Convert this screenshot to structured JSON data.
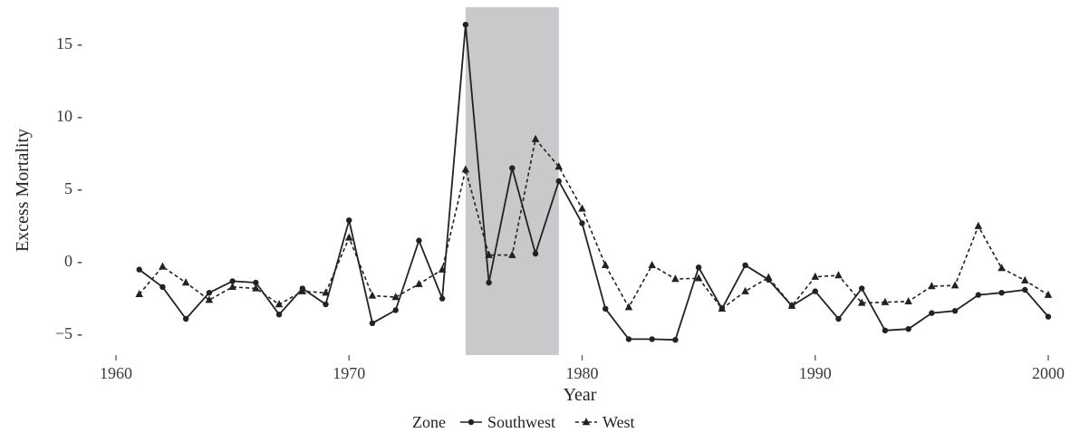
{
  "chart_data": {
    "type": "line",
    "title": "",
    "xlabel": "Year",
    "ylabel": "Excess Mortality",
    "xlim": [
      1960,
      2000
    ],
    "ylim": [
      -6.5,
      17.5
    ],
    "x_ticks": [
      1960,
      1970,
      1980,
      1990,
      2000
    ],
    "x_tick_labels": [
      "1960",
      "1970",
      "1980",
      "1990",
      "2000"
    ],
    "y_ticks": [
      -5,
      0,
      5,
      10,
      15
    ],
    "y_tick_labels": [
      "−5",
      "0",
      "5",
      "10",
      "15"
    ],
    "grid": false,
    "shaded_region": {
      "x": [
        1975,
        1979
      ],
      "color": "#c8c9cb"
    },
    "legend": {
      "title": "Zone",
      "position": "bottom"
    },
    "x": [
      1961,
      1962,
      1963,
      1964,
      1965,
      1966,
      1967,
      1968,
      1969,
      1970,
      1971,
      1972,
      1973,
      1974,
      1975,
      1976,
      1977,
      1978,
      1979,
      1980,
      1981,
      1982,
      1983,
      1984,
      1985,
      1986,
      1987,
      1988,
      1989,
      1990,
      1991,
      1992,
      1993,
      1994,
      1995,
      1996,
      1997,
      1998,
      1999,
      2000
    ],
    "series": [
      {
        "name": "Southwest",
        "marker": "circle",
        "line_style": "solid",
        "color": "#222222",
        "values": [
          -0.6,
          -1.8,
          -4.0,
          -2.2,
          -1.4,
          -1.5,
          -3.7,
          -1.9,
          -3.0,
          2.8,
          -4.3,
          -3.4,
          1.4,
          -2.6,
          16.3,
          -1.5,
          6.4,
          0.5,
          5.5,
          2.6,
          -3.3,
          -5.4,
          -5.4,
          -5.45,
          -0.45,
          -3.3,
          -0.3,
          -1.3,
          -3.1,
          -2.1,
          -4.0,
          -1.9,
          -4.8,
          -4.7,
          -3.6,
          -3.45,
          -2.35,
          -2.2,
          -2.0,
          -3.85
        ]
      },
      {
        "name": "West",
        "marker": "triangle",
        "line_style": "dashed",
        "color": "#222222",
        "values": [
          -2.3,
          -0.4,
          -1.5,
          -2.7,
          -1.8,
          -1.9,
          -3.0,
          -2.1,
          -2.2,
          1.6,
          -2.4,
          -2.5,
          -1.6,
          -0.6,
          6.3,
          0.4,
          0.4,
          8.4,
          6.5,
          3.6,
          -0.3,
          -3.2,
          -0.3,
          -1.25,
          -1.2,
          -3.3,
          -2.1,
          -1.15,
          -3.1,
          -1.1,
          -1.0,
          -2.9,
          -2.85,
          -2.8,
          -1.75,
          -1.7,
          2.4,
          -0.5,
          -1.35,
          -2.35
        ]
      }
    ]
  }
}
